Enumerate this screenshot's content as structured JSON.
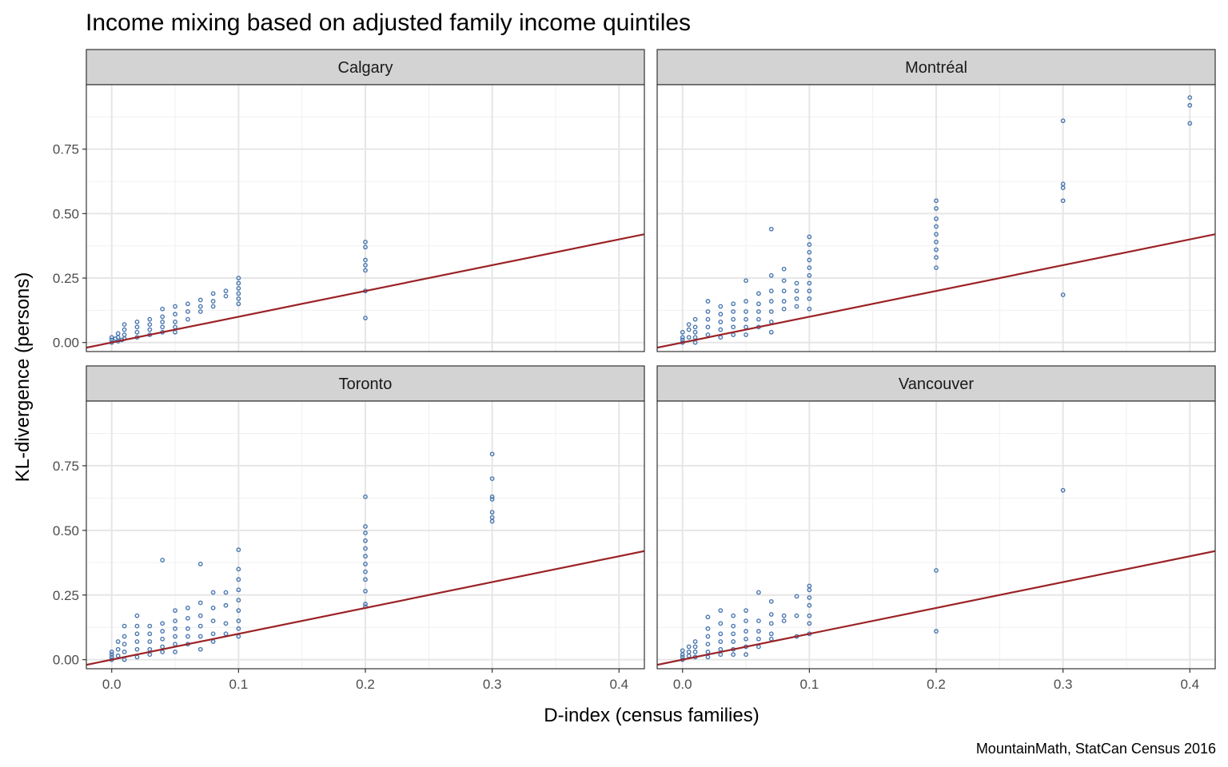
{
  "chart_data": {
    "type": "scatter",
    "title": "Income mixing based on adjusted family income quintiles",
    "xlabel": "D-index (census families)",
    "ylabel": "KL-divergence (persons)",
    "caption": "MountainMath, StatCan Census 2016",
    "xlim": [
      -0.02,
      0.42
    ],
    "ylim": [
      -0.035,
      1.0
    ],
    "x_ticks": [
      0.0,
      0.1,
      0.2,
      0.3,
      0.4
    ],
    "x_tick_labels": [
      "0.0",
      "0.1",
      "0.2",
      "0.3",
      "0.4"
    ],
    "y_ticks": [
      0.0,
      0.25,
      0.5,
      0.75
    ],
    "y_tick_labels": [
      "0.00",
      "0.25",
      "0.50",
      "0.75"
    ],
    "grid": true,
    "point_color": "#4a78b0",
    "line_color": "#9b2226",
    "reference_line": {
      "slope": 1,
      "intercept": 0
    },
    "facets": [
      {
        "label": "Calgary",
        "points": [
          [
            0,
            0.02
          ],
          [
            0,
            0.01
          ],
          [
            0,
            0.0
          ],
          [
            0.003,
            0.015
          ],
          [
            0.005,
            0.005
          ],
          [
            0.005,
            0.02
          ],
          [
            0.005,
            0.035
          ],
          [
            0.008,
            0.01
          ],
          [
            0.01,
            0.07
          ],
          [
            0.01,
            0.05
          ],
          [
            0.01,
            0.03
          ],
          [
            0.01,
            0.015
          ],
          [
            0.02,
            0.08
          ],
          [
            0.02,
            0.06
          ],
          [
            0.02,
            0.04
          ],
          [
            0.02,
            0.02
          ],
          [
            0.03,
            0.09
          ],
          [
            0.03,
            0.07
          ],
          [
            0.03,
            0.05
          ],
          [
            0.03,
            0.03
          ],
          [
            0.04,
            0.13
          ],
          [
            0.04,
            0.1
          ],
          [
            0.04,
            0.08
          ],
          [
            0.04,
            0.06
          ],
          [
            0.04,
            0.04
          ],
          [
            0.05,
            0.14
          ],
          [
            0.05,
            0.11
          ],
          [
            0.05,
            0.08
          ],
          [
            0.05,
            0.06
          ],
          [
            0.05,
            0.04
          ],
          [
            0.06,
            0.15
          ],
          [
            0.06,
            0.12
          ],
          [
            0.06,
            0.09
          ],
          [
            0.07,
            0.165
          ],
          [
            0.07,
            0.14
          ],
          [
            0.07,
            0.12
          ],
          [
            0.08,
            0.19
          ],
          [
            0.08,
            0.16
          ],
          [
            0.08,
            0.14
          ],
          [
            0.09,
            0.2
          ],
          [
            0.09,
            0.18
          ],
          [
            0.1,
            0.25
          ],
          [
            0.1,
            0.23
          ],
          [
            0.1,
            0.21
          ],
          [
            0.1,
            0.19
          ],
          [
            0.1,
            0.17
          ],
          [
            0.1,
            0.15
          ],
          [
            0.2,
            0.39
          ],
          [
            0.2,
            0.37
          ],
          [
            0.2,
            0.32
          ],
          [
            0.2,
            0.3
          ],
          [
            0.2,
            0.28
          ],
          [
            0.2,
            0.2
          ],
          [
            0.2,
            0.095
          ]
        ]
      },
      {
        "label": "Montréal",
        "points": [
          [
            0,
            0.0
          ],
          [
            0,
            0.01
          ],
          [
            0,
            0.02
          ],
          [
            0,
            0.04
          ],
          [
            0.005,
            0.02
          ],
          [
            0.005,
            0.05
          ],
          [
            0.005,
            0.07
          ],
          [
            0.01,
            0.09
          ],
          [
            0.01,
            0.06
          ],
          [
            0.01,
            0.04
          ],
          [
            0.01,
            0.02
          ],
          [
            0.01,
            0.0
          ],
          [
            0.02,
            0.16
          ],
          [
            0.02,
            0.12
          ],
          [
            0.02,
            0.09
          ],
          [
            0.02,
            0.06
          ],
          [
            0.02,
            0.03
          ],
          [
            0.03,
            0.14
          ],
          [
            0.03,
            0.11
          ],
          [
            0.03,
            0.08
          ],
          [
            0.03,
            0.05
          ],
          [
            0.03,
            0.02
          ],
          [
            0.04,
            0.15
          ],
          [
            0.04,
            0.12
          ],
          [
            0.04,
            0.09
          ],
          [
            0.04,
            0.06
          ],
          [
            0.04,
            0.03
          ],
          [
            0.05,
            0.24
          ],
          [
            0.05,
            0.16
          ],
          [
            0.05,
            0.12
          ],
          [
            0.05,
            0.09
          ],
          [
            0.05,
            0.06
          ],
          [
            0.05,
            0.03
          ],
          [
            0.06,
            0.19
          ],
          [
            0.06,
            0.15
          ],
          [
            0.06,
            0.12
          ],
          [
            0.06,
            0.09
          ],
          [
            0.06,
            0.06
          ],
          [
            0.07,
            0.44
          ],
          [
            0.07,
            0.26
          ],
          [
            0.07,
            0.2
          ],
          [
            0.07,
            0.16
          ],
          [
            0.07,
            0.12
          ],
          [
            0.07,
            0.08
          ],
          [
            0.07,
            0.04
          ],
          [
            0.08,
            0.285
          ],
          [
            0.08,
            0.24
          ],
          [
            0.08,
            0.2
          ],
          [
            0.08,
            0.16
          ],
          [
            0.08,
            0.13
          ],
          [
            0.09,
            0.23
          ],
          [
            0.09,
            0.2
          ],
          [
            0.09,
            0.17
          ],
          [
            0.09,
            0.14
          ],
          [
            0.1,
            0.41
          ],
          [
            0.1,
            0.38
          ],
          [
            0.1,
            0.35
          ],
          [
            0.1,
            0.32
          ],
          [
            0.1,
            0.29
          ],
          [
            0.1,
            0.26
          ],
          [
            0.1,
            0.23
          ],
          [
            0.1,
            0.2
          ],
          [
            0.1,
            0.17
          ],
          [
            0.1,
            0.13
          ],
          [
            0.2,
            0.55
          ],
          [
            0.2,
            0.52
          ],
          [
            0.2,
            0.48
          ],
          [
            0.2,
            0.45
          ],
          [
            0.2,
            0.42
          ],
          [
            0.2,
            0.39
          ],
          [
            0.2,
            0.36
          ],
          [
            0.2,
            0.33
          ],
          [
            0.2,
            0.29
          ],
          [
            0.3,
            0.86
          ],
          [
            0.3,
            0.615
          ],
          [
            0.3,
            0.6
          ],
          [
            0.3,
            0.55
          ],
          [
            0.3,
            0.185
          ],
          [
            0.4,
            0.95
          ],
          [
            0.4,
            0.92
          ],
          [
            0.4,
            0.85
          ]
        ]
      },
      {
        "label": "Toronto",
        "points": [
          [
            0,
            0.0
          ],
          [
            0,
            0.01
          ],
          [
            0,
            0.02
          ],
          [
            0,
            0.03
          ],
          [
            0.005,
            0.015
          ],
          [
            0.005,
            0.04
          ],
          [
            0.005,
            0.07
          ],
          [
            0.01,
            0.13
          ],
          [
            0.01,
            0.09
          ],
          [
            0.01,
            0.06
          ],
          [
            0.01,
            0.03
          ],
          [
            0.01,
            0.0
          ],
          [
            0.02,
            0.17
          ],
          [
            0.02,
            0.13
          ],
          [
            0.02,
            0.1
          ],
          [
            0.02,
            0.07
          ],
          [
            0.02,
            0.04
          ],
          [
            0.02,
            0.01
          ],
          [
            0.03,
            0.13
          ],
          [
            0.03,
            0.1
          ],
          [
            0.03,
            0.07
          ],
          [
            0.03,
            0.04
          ],
          [
            0.03,
            0.02
          ],
          [
            0.04,
            0.385
          ],
          [
            0.04,
            0.14
          ],
          [
            0.04,
            0.11
          ],
          [
            0.04,
            0.08
          ],
          [
            0.04,
            0.05
          ],
          [
            0.04,
            0.03
          ],
          [
            0.05,
            0.19
          ],
          [
            0.05,
            0.15
          ],
          [
            0.05,
            0.12
          ],
          [
            0.05,
            0.09
          ],
          [
            0.05,
            0.06
          ],
          [
            0.05,
            0.03
          ],
          [
            0.06,
            0.2
          ],
          [
            0.06,
            0.16
          ],
          [
            0.06,
            0.12
          ],
          [
            0.06,
            0.09
          ],
          [
            0.06,
            0.06
          ],
          [
            0.07,
            0.37
          ],
          [
            0.07,
            0.22
          ],
          [
            0.07,
            0.17
          ],
          [
            0.07,
            0.13
          ],
          [
            0.07,
            0.09
          ],
          [
            0.07,
            0.04
          ],
          [
            0.08,
            0.26
          ],
          [
            0.08,
            0.2
          ],
          [
            0.08,
            0.15
          ],
          [
            0.08,
            0.1
          ],
          [
            0.08,
            0.07
          ],
          [
            0.09,
            0.26
          ],
          [
            0.09,
            0.21
          ],
          [
            0.09,
            0.14
          ],
          [
            0.09,
            0.1
          ],
          [
            0.1,
            0.425
          ],
          [
            0.1,
            0.35
          ],
          [
            0.1,
            0.31
          ],
          [
            0.1,
            0.27
          ],
          [
            0.1,
            0.23
          ],
          [
            0.1,
            0.19
          ],
          [
            0.1,
            0.15
          ],
          [
            0.1,
            0.12
          ],
          [
            0.1,
            0.09
          ],
          [
            0.2,
            0.63
          ],
          [
            0.2,
            0.515
          ],
          [
            0.2,
            0.49
          ],
          [
            0.2,
            0.46
          ],
          [
            0.2,
            0.43
          ],
          [
            0.2,
            0.4
          ],
          [
            0.2,
            0.37
          ],
          [
            0.2,
            0.34
          ],
          [
            0.2,
            0.31
          ],
          [
            0.2,
            0.265
          ],
          [
            0.2,
            0.215
          ],
          [
            0.2,
            0.205
          ],
          [
            0.3,
            0.795
          ],
          [
            0.3,
            0.7
          ],
          [
            0.3,
            0.63
          ],
          [
            0.3,
            0.62
          ],
          [
            0.3,
            0.57
          ],
          [
            0.3,
            0.55
          ],
          [
            0.3,
            0.535
          ]
        ]
      },
      {
        "label": "Vancouver",
        "points": [
          [
            0,
            0.0
          ],
          [
            0,
            0.01
          ],
          [
            0,
            0.02
          ],
          [
            0,
            0.035
          ],
          [
            0.005,
            0.015
          ],
          [
            0.005,
            0.03
          ],
          [
            0.005,
            0.05
          ],
          [
            0.01,
            0.07
          ],
          [
            0.01,
            0.05
          ],
          [
            0.01,
            0.03
          ],
          [
            0.01,
            0.01
          ],
          [
            0.02,
            0.165
          ],
          [
            0.02,
            0.12
          ],
          [
            0.02,
            0.09
          ],
          [
            0.02,
            0.06
          ],
          [
            0.02,
            0.03
          ],
          [
            0.02,
            0.01
          ],
          [
            0.03,
            0.19
          ],
          [
            0.03,
            0.14
          ],
          [
            0.03,
            0.1
          ],
          [
            0.03,
            0.07
          ],
          [
            0.03,
            0.04
          ],
          [
            0.03,
            0.02
          ],
          [
            0.04,
            0.17
          ],
          [
            0.04,
            0.13
          ],
          [
            0.04,
            0.1
          ],
          [
            0.04,
            0.07
          ],
          [
            0.04,
            0.04
          ],
          [
            0.04,
            0.02
          ],
          [
            0.05,
            0.19
          ],
          [
            0.05,
            0.15
          ],
          [
            0.05,
            0.11
          ],
          [
            0.05,
            0.08
          ],
          [
            0.05,
            0.05
          ],
          [
            0.05,
            0.02
          ],
          [
            0.06,
            0.26
          ],
          [
            0.06,
            0.15
          ],
          [
            0.06,
            0.11
          ],
          [
            0.06,
            0.08
          ],
          [
            0.06,
            0.05
          ],
          [
            0.07,
            0.225
          ],
          [
            0.07,
            0.175
          ],
          [
            0.07,
            0.14
          ],
          [
            0.07,
            0.1
          ],
          [
            0.07,
            0.08
          ],
          [
            0.08,
            0.17
          ],
          [
            0.08,
            0.15
          ],
          [
            0.09,
            0.245
          ],
          [
            0.09,
            0.17
          ],
          [
            0.09,
            0.09
          ],
          [
            0.1,
            0.285
          ],
          [
            0.1,
            0.27
          ],
          [
            0.1,
            0.24
          ],
          [
            0.1,
            0.21
          ],
          [
            0.1,
            0.17
          ],
          [
            0.1,
            0.14
          ],
          [
            0.1,
            0.1
          ],
          [
            0.2,
            0.345
          ],
          [
            0.2,
            0.11
          ],
          [
            0.3,
            0.655
          ]
        ]
      }
    ]
  }
}
